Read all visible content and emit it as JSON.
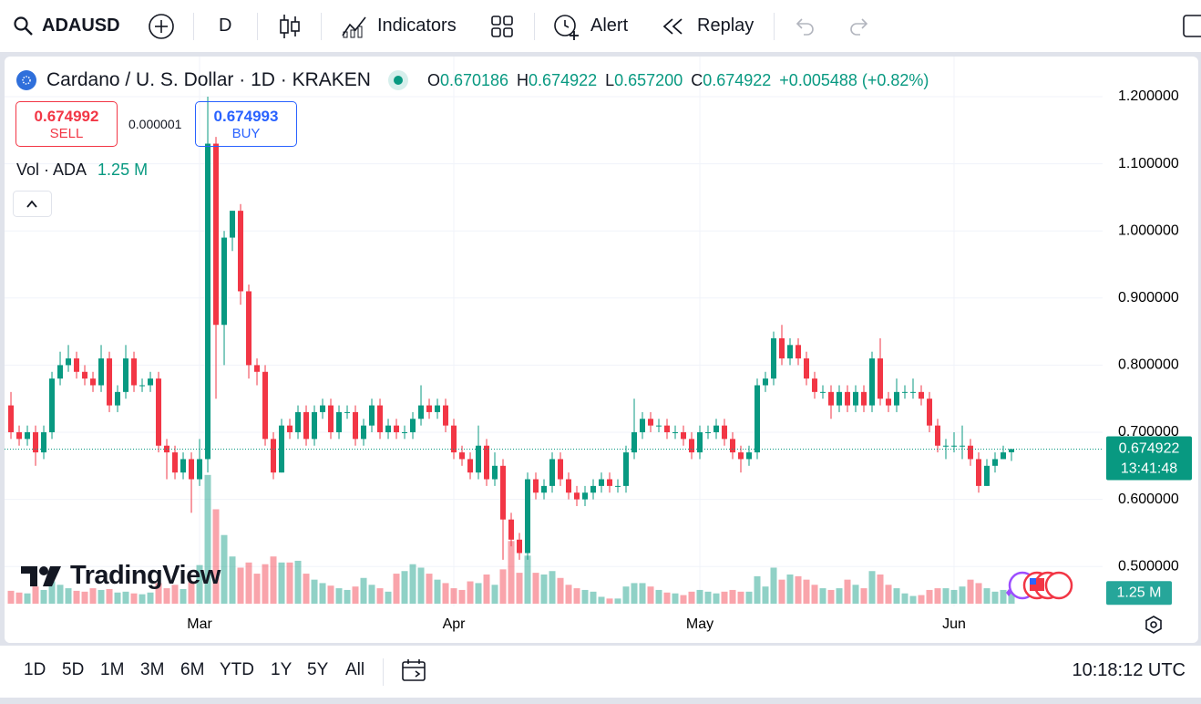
{
  "toolbar": {
    "symbol": "ADAUSD",
    "interval": "D",
    "indicators": "Indicators",
    "alert": "Alert",
    "replay": "Replay"
  },
  "legend": {
    "title": "Cardano / U. S. Dollar · 1D · KRAKEN",
    "ohlc": [
      {
        "key": "O",
        "value": "0.670186"
      },
      {
        "key": "H",
        "value": "0.674922"
      },
      {
        "key": "L",
        "value": "0.657200"
      },
      {
        "key": "C",
        "value": "0.674922"
      }
    ],
    "change": "+0.005488 (+0.82%)"
  },
  "trade": {
    "sell_price": "0.674992",
    "sell": "SELL",
    "spread": "0.000001",
    "buy_price": "0.674993",
    "buy": "BUY"
  },
  "volume_legend": {
    "label": "Vol · ADA",
    "value": "1.25 M"
  },
  "price_tag": {
    "price": "0.674922",
    "countdown": "13:41:48"
  },
  "volume_tag": "1.25 M",
  "watermark": "TradingView",
  "chart": {
    "type": "candlestick",
    "up_color": "#089981",
    "down_color": "#f23645",
    "ylim": [
      0.4405,
      1.2598
    ],
    "yticks": [
      {
        "value": 0.5,
        "label": "0.500000"
      },
      {
        "value": 0.6,
        "label": "0.600000"
      },
      {
        "value": 0.7,
        "label": "0.700000"
      },
      {
        "value": 0.8,
        "label": "0.800000"
      },
      {
        "value": 0.9,
        "label": "0.900000"
      },
      {
        "value": 1.0,
        "label": "1.000000"
      },
      {
        "value": 1.1,
        "label": "1.100000"
      },
      {
        "value": 1.2,
        "label": "1.200000"
      }
    ],
    "xlim": [
      -0.78,
      133.11
    ],
    "xticks": [
      {
        "value": 23,
        "label": "Mar"
      },
      {
        "value": 54,
        "label": "Apr"
      },
      {
        "value": 84,
        "label": "May"
      },
      {
        "value": 115,
        "label": "Jun"
      }
    ],
    "vlim": [
      0,
      17
    ],
    "grid": true,
    "open": [
      0.74,
      0.7,
      0.69,
      0.7,
      0.67,
      0.7,
      0.78,
      0.8,
      0.81,
      0.79,
      0.78,
      0.77,
      0.81,
      0.74,
      0.76,
      0.81,
      0.77,
      0.77,
      0.78,
      0.68,
      0.67,
      0.64,
      0.66,
      0.63,
      0.66,
      1.13,
      0.86,
      0.99,
      1.03,
      0.91,
      0.8,
      0.79,
      0.69,
      0.64,
      0.71,
      0.7,
      0.73,
      0.69,
      0.73,
      0.74,
      0.7,
      0.73,
      0.73,
      0.69,
      0.71,
      0.74,
      0.7,
      0.71,
      0.7,
      0.7,
      0.72,
      0.74,
      0.73,
      0.74,
      0.71,
      0.67,
      0.66,
      0.64,
      0.68,
      0.63,
      0.65,
      0.57,
      0.54,
      0.52,
      0.63,
      0.61,
      0.62,
      0.66,
      0.63,
      0.61,
      0.6,
      0.61,
      0.62,
      0.63,
      0.62,
      0.62,
      0.67,
      0.7,
      0.72,
      0.71,
      0.71,
      0.7,
      0.7,
      0.69,
      0.67,
      0.7,
      0.7,
      0.71,
      0.69,
      0.67,
      0.66,
      0.67,
      0.77,
      0.78,
      0.84,
      0.81,
      0.83,
      0.81,
      0.78,
      0.76,
      0.76,
      0.74,
      0.76,
      0.74,
      0.76,
      0.74,
      0.81,
      0.75,
      0.74,
      0.76,
      0.76,
      0.76,
      0.75,
      0.71,
      0.68,
      0.68,
      0.68,
      0.68,
      0.66,
      0.62,
      0.65,
      0.66,
      0.670186
    ],
    "high": [
      0.76,
      0.71,
      0.71,
      0.71,
      0.71,
      0.79,
      0.82,
      0.83,
      0.82,
      0.8,
      0.79,
      0.83,
      0.82,
      0.77,
      0.83,
      0.82,
      0.78,
      0.79,
      0.79,
      0.69,
      0.68,
      0.67,
      0.67,
      0.69,
      1.2,
      1.14,
      1.0,
      1.03,
      1.04,
      0.92,
      0.81,
      0.8,
      0.7,
      0.72,
      0.72,
      0.74,
      0.74,
      0.74,
      0.75,
      0.75,
      0.74,
      0.74,
      0.74,
      0.72,
      0.75,
      0.75,
      0.72,
      0.72,
      0.71,
      0.73,
      0.77,
      0.75,
      0.75,
      0.75,
      0.72,
      0.68,
      0.67,
      0.71,
      0.69,
      0.67,
      0.66,
      0.58,
      0.55,
      0.64,
      0.64,
      0.63,
      0.67,
      0.67,
      0.64,
      0.62,
      0.62,
      0.63,
      0.64,
      0.64,
      0.63,
      0.68,
      0.75,
      0.73,
      0.73,
      0.72,
      0.72,
      0.71,
      0.71,
      0.7,
      0.71,
      0.71,
      0.72,
      0.72,
      0.7,
      0.68,
      0.68,
      0.78,
      0.79,
      0.85,
      0.86,
      0.84,
      0.84,
      0.82,
      0.79,
      0.77,
      0.77,
      0.77,
      0.77,
      0.77,
      0.77,
      0.82,
      0.84,
      0.76,
      0.78,
      0.77,
      0.78,
      0.77,
      0.76,
      0.72,
      0.69,
      0.7,
      0.71,
      0.69,
      0.67,
      0.66,
      0.67,
      0.68,
      0.674922
    ],
    "low": [
      0.69,
      0.68,
      0.68,
      0.65,
      0.66,
      0.69,
      0.77,
      0.79,
      0.78,
      0.77,
      0.76,
      0.76,
      0.73,
      0.73,
      0.75,
      0.76,
      0.76,
      0.76,
      0.67,
      0.63,
      0.63,
      0.63,
      0.58,
      0.62,
      0.64,
      0.75,
      0.8,
      0.97,
      0.89,
      0.78,
      0.77,
      0.68,
      0.63,
      0.64,
      0.69,
      0.69,
      0.68,
      0.68,
      0.72,
      0.69,
      0.69,
      0.72,
      0.68,
      0.68,
      0.7,
      0.69,
      0.69,
      0.69,
      0.69,
      0.69,
      0.71,
      0.72,
      0.72,
      0.7,
      0.66,
      0.65,
      0.63,
      0.63,
      0.62,
      0.62,
      0.51,
      0.53,
      0.51,
      0.51,
      0.6,
      0.6,
      0.61,
      0.62,
      0.6,
      0.59,
      0.59,
      0.6,
      0.61,
      0.61,
      0.61,
      0.61,
      0.66,
      0.69,
      0.7,
      0.7,
      0.69,
      0.69,
      0.68,
      0.66,
      0.66,
      0.69,
      0.69,
      0.68,
      0.66,
      0.64,
      0.65,
      0.66,
      0.76,
      0.77,
      0.8,
      0.8,
      0.8,
      0.77,
      0.75,
      0.75,
      0.72,
      0.73,
      0.73,
      0.73,
      0.73,
      0.73,
      0.74,
      0.73,
      0.73,
      0.75,
      0.75,
      0.74,
      0.7,
      0.67,
      0.66,
      0.67,
      0.66,
      0.65,
      0.61,
      0.62,
      0.64,
      0.66,
      0.6572
    ],
    "close": [
      0.7,
      0.69,
      0.7,
      0.67,
      0.7,
      0.78,
      0.8,
      0.81,
      0.79,
      0.78,
      0.77,
      0.81,
      0.74,
      0.76,
      0.81,
      0.77,
      0.77,
      0.78,
      0.68,
      0.67,
      0.64,
      0.66,
      0.63,
      0.66,
      1.13,
      0.86,
      0.99,
      1.03,
      0.91,
      0.8,
      0.79,
      0.69,
      0.64,
      0.71,
      0.7,
      0.73,
      0.69,
      0.73,
      0.74,
      0.7,
      0.73,
      0.73,
      0.69,
      0.71,
      0.74,
      0.7,
      0.71,
      0.7,
      0.7,
      0.72,
      0.74,
      0.73,
      0.74,
      0.71,
      0.67,
      0.66,
      0.64,
      0.68,
      0.63,
      0.65,
      0.57,
      0.54,
      0.52,
      0.63,
      0.61,
      0.62,
      0.66,
      0.63,
      0.61,
      0.6,
      0.61,
      0.62,
      0.63,
      0.62,
      0.62,
      0.67,
      0.7,
      0.72,
      0.71,
      0.71,
      0.7,
      0.7,
      0.69,
      0.67,
      0.7,
      0.7,
      0.71,
      0.69,
      0.67,
      0.66,
      0.67,
      0.77,
      0.78,
      0.84,
      0.81,
      0.83,
      0.81,
      0.78,
      0.76,
      0.76,
      0.74,
      0.76,
      0.74,
      0.76,
      0.74,
      0.81,
      0.75,
      0.74,
      0.76,
      0.76,
      0.76,
      0.75,
      0.71,
      0.68,
      0.68,
      0.68,
      0.68,
      0.66,
      0.62,
      0.65,
      0.66,
      0.67,
      0.674922
    ],
    "volume": [
      1.5,
      1.3,
      1.2,
      2.0,
      1.6,
      2.6,
      2.2,
      1.8,
      1.5,
      1.4,
      1.8,
      1.6,
      1.7,
      1.3,
      1.4,
      1.2,
      1.1,
      1.3,
      2.4,
      1.8,
      2.2,
      1.7,
      2.5,
      4.5,
      15.0,
      11.0,
      8.0,
      5.5,
      4.2,
      4.8,
      3.5,
      4.6,
      5.5,
      4.8,
      4.8,
      5.0,
      3.5,
      2.8,
      2.4,
      2.1,
      1.8,
      1.6,
      2.0,
      3.0,
      2.2,
      1.8,
      1.4,
      3.5,
      3.8,
      4.6,
      4.2,
      3.5,
      2.8,
      2.4,
      1.8,
      1.6,
      2.6,
      2.4,
      3.4,
      2.2,
      4.0,
      7.3,
      3.6,
      5.6,
      3.6,
      3.4,
      3.8,
      3.0,
      2.2,
      1.8,
      1.6,
      1.4,
      0.8,
      0.6,
      0.6,
      2.0,
      2.4,
      2.4,
      2.0,
      1.6,
      1.3,
      1.2,
      1.0,
      1.4,
      1.6,
      1.4,
      1.2,
      1.4,
      1.6,
      1.4,
      1.4,
      3.2,
      2.0,
      4.2,
      2.8,
      3.4,
      3.2,
      2.8,
      2.2,
      1.8,
      1.6,
      1.8,
      2.8,
      2.2,
      1.8,
      3.8,
      3.4,
      2.2,
      1.8,
      1.2,
      0.9,
      1.0,
      1.6,
      1.8,
      1.8,
      1.6,
      2.0,
      2.8,
      2.4,
      1.8,
      1.4,
      1.6,
      1.25
    ]
  },
  "ranges": [
    "1D",
    "5D",
    "1M",
    "3M",
    "6M",
    "YTD",
    "1Y",
    "5Y",
    "All"
  ],
  "clock": "10:18:12 UTC"
}
